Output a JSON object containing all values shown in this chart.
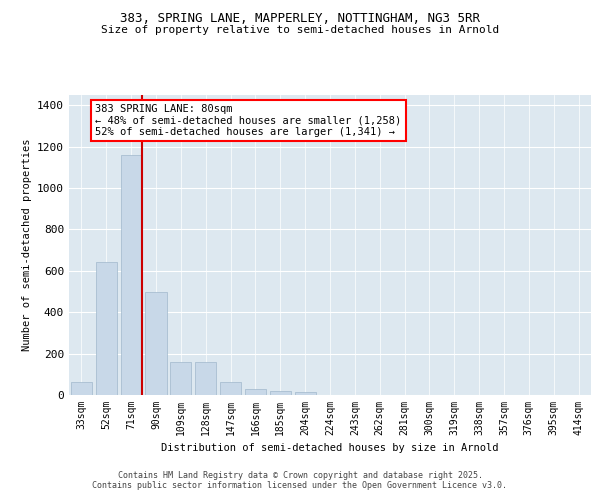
{
  "title1": "383, SPRING LANE, MAPPERLEY, NOTTINGHAM, NG3 5RR",
  "title2": "Size of property relative to semi-detached houses in Arnold",
  "xlabel": "Distribution of semi-detached houses by size in Arnold",
  "ylabel": "Number of semi-detached properties",
  "categories": [
    "33sqm",
    "52sqm",
    "71sqm",
    "90sqm",
    "109sqm",
    "128sqm",
    "147sqm",
    "166sqm",
    "185sqm",
    "204sqm",
    "224sqm",
    "243sqm",
    "262sqm",
    "281sqm",
    "300sqm",
    "319sqm",
    "338sqm",
    "357sqm",
    "376sqm",
    "395sqm",
    "414sqm"
  ],
  "values": [
    65,
    645,
    1160,
    500,
    160,
    160,
    65,
    30,
    20,
    15,
    0,
    0,
    0,
    0,
    0,
    0,
    0,
    0,
    0,
    0,
    0
  ],
  "bar_color": "#c8d8e8",
  "bar_edge_color": "#a0b8cc",
  "vline_index": 2.425,
  "vline_color": "#cc0000",
  "annotation_title": "383 SPRING LANE: 80sqm",
  "annotation_line1": "← 48% of semi-detached houses are smaller (1,258)",
  "annotation_line2": "52% of semi-detached houses are larger (1,341) →",
  "ylim": [
    0,
    1450
  ],
  "yticks": [
    0,
    200,
    400,
    600,
    800,
    1000,
    1200,
    1400
  ],
  "bg_color": "#dde8f0",
  "footer1": "Contains HM Land Registry data © Crown copyright and database right 2025.",
  "footer2": "Contains public sector information licensed under the Open Government Licence v3.0."
}
